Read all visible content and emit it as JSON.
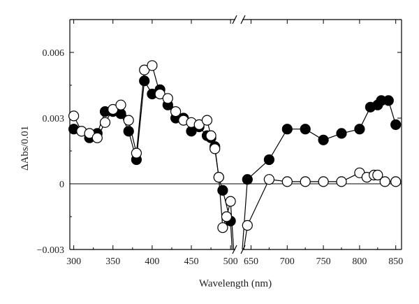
{
  "chart_data": {
    "type": "scatter",
    "title": "",
    "xlabel": "Wavelength (nm)",
    "ylabel": "ΔAbs/0.01",
    "x_segments": [
      {
        "range": [
          295,
          507
        ],
        "ticks": [
          300,
          350,
          400,
          450,
          500
        ]
      },
      {
        "range": [
          637,
          858
        ],
        "ticks": [
          650,
          700,
          750,
          800,
          850
        ]
      }
    ],
    "ylim": [
      -0.003,
      0.0075
    ],
    "y_ticks": [
      -0.003,
      0,
      0.003,
      0.006
    ],
    "y_tick_labels": [
      "−0.003",
      "0",
      "0.003",
      "0.006"
    ],
    "x_tick_labels": [
      "300",
      "350",
      "400",
      "450",
      "500",
      "650",
      "700",
      "750",
      "800",
      "850"
    ],
    "axis_break": true,
    "zero_line": true,
    "grid": false,
    "series": [
      {
        "marker": "filled-circle",
        "color": "#000000",
        "points": [
          [
            300,
            0.0025
          ],
          [
            310,
            0.0024
          ],
          [
            320,
            0.0021
          ],
          [
            330,
            0.0023
          ],
          [
            340,
            0.0033
          ],
          [
            350,
            0.0033
          ],
          [
            360,
            0.0032
          ],
          [
            370,
            0.0024
          ],
          [
            380,
            0.0011
          ],
          [
            390,
            0.0047
          ],
          [
            400,
            0.0041
          ],
          [
            410,
            0.0043
          ],
          [
            420,
            0.0036
          ],
          [
            430,
            0.003
          ],
          [
            440,
            0.003
          ],
          [
            450,
            0.0024
          ],
          [
            460,
            0.0026
          ],
          [
            470,
            0.0022
          ],
          [
            475,
            0.0021
          ],
          [
            480,
            0.0017
          ],
          [
            485,
            0.0003
          ],
          [
            490,
            -0.0003
          ],
          [
            500,
            -0.0017
          ],
          [
            502,
            -0.0032
          ],
          [
            638,
            -0.0032
          ],
          [
            645,
            0.0002
          ],
          [
            675,
            0.0011
          ],
          [
            700,
            0.0025
          ],
          [
            725,
            0.0025
          ],
          [
            750,
            0.002
          ],
          [
            775,
            0.0023
          ],
          [
            800,
            0.0025
          ],
          [
            815,
            0.0035
          ],
          [
            825,
            0.0036
          ],
          [
            830,
            0.0038
          ],
          [
            840,
            0.0038
          ],
          [
            850,
            0.0027
          ]
        ]
      },
      {
        "marker": "open-circle",
        "color": "#000000",
        "points": [
          [
            300,
            0.0031
          ],
          [
            310,
            0.0024
          ],
          [
            320,
            0.0023
          ],
          [
            330,
            0.0021
          ],
          [
            340,
            0.0028
          ],
          [
            350,
            0.0034
          ],
          [
            360,
            0.0036
          ],
          [
            370,
            0.0029
          ],
          [
            380,
            0.0014
          ],
          [
            390,
            0.0052
          ],
          [
            400,
            0.0054
          ],
          [
            410,
            0.0041
          ],
          [
            420,
            0.0039
          ],
          [
            430,
            0.0033
          ],
          [
            440,
            0.0029
          ],
          [
            450,
            0.0028
          ],
          [
            460,
            0.0027
          ],
          [
            470,
            0.0029
          ],
          [
            475,
            0.0022
          ],
          [
            480,
            0.0016
          ],
          [
            485,
            0.0003
          ],
          [
            490,
            -0.002
          ],
          [
            495,
            -0.0015
          ],
          [
            500,
            -0.0008
          ],
          [
            504,
            -0.0032
          ],
          [
            640,
            -0.0032
          ],
          [
            645,
            -0.0019
          ],
          [
            675,
            0.0002
          ],
          [
            700,
            0.0001
          ],
          [
            725,
            0.0001
          ],
          [
            750,
            0.0001
          ],
          [
            775,
            0.0001
          ],
          [
            800,
            0.0005
          ],
          [
            810,
            0.0003
          ],
          [
            820,
            0.0004
          ],
          [
            825,
            0.0004
          ],
          [
            835,
            0.0001
          ],
          [
            850,
            0.0001
          ]
        ]
      }
    ]
  }
}
